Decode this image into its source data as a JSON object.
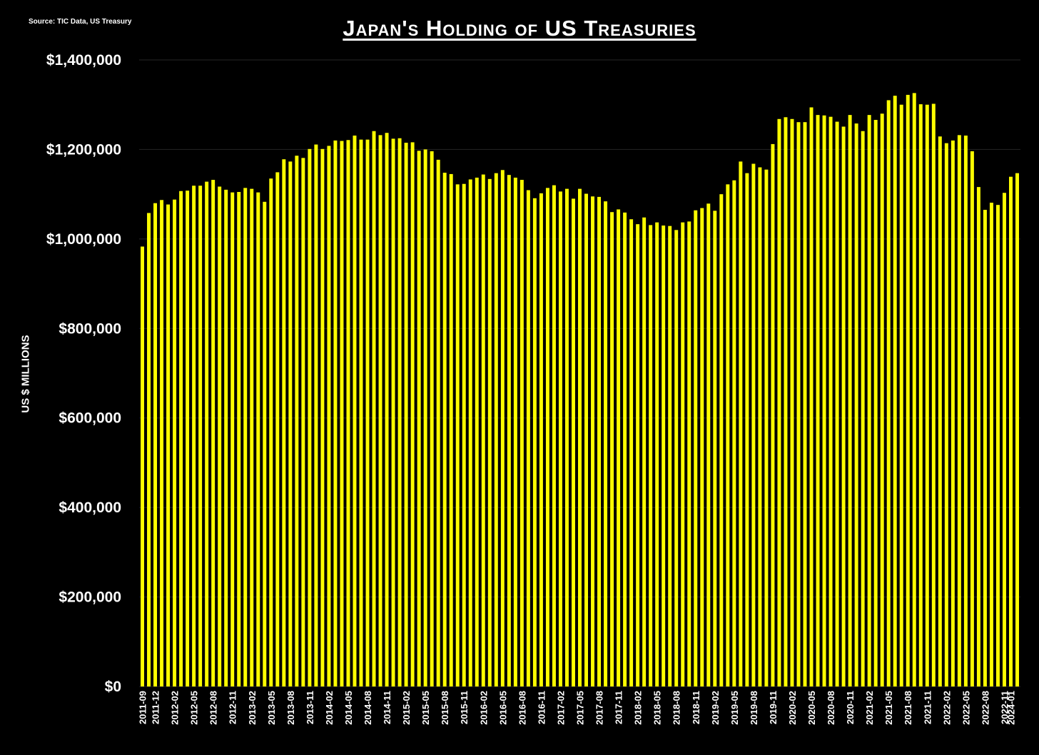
{
  "source_note": "Source: TIC Data, US Treasury",
  "chart_data": {
    "type": "bar",
    "title": "Japan's Holding of US Treasuries",
    "ylabel": "US $ MILLIONS",
    "xlabel": "",
    "ylim": [
      0,
      1400000
    ],
    "yticks": [
      0,
      200000,
      400000,
      600000,
      800000,
      1000000,
      1200000,
      1400000
    ],
    "ytick_labels": [
      "$0",
      "$200,000",
      "$400,000",
      "$600,000",
      "$800,000",
      "$1,000,000",
      "$1,200,000",
      "$1,400,000"
    ],
    "grid": "horizontal",
    "bar_color": "#FFFF00",
    "background": "#000000",
    "gridline_color": "#262626",
    "start_month": "2011-09",
    "xtick_every": 3,
    "xtick_labels": [
      "2011-09",
      "2011-12",
      "2012-02",
      "2012-05",
      "2012-08",
      "2012-11",
      "2013-02",
      "2013-05",
      "2013-08",
      "2013-11",
      "2014-02",
      "2014-05",
      "2014-08",
      "2014-11",
      "2015-02",
      "2015-05",
      "2015-08",
      "2015-11",
      "2016-02",
      "2016-05",
      "2016-08",
      "2016-11",
      "2017-02",
      "2017-05",
      "2017-08",
      "2017-11",
      "2018-02",
      "2018-05",
      "2018-08",
      "2018-11",
      "2019-02",
      "2019-05",
      "2019-08",
      "2019-11",
      "2020-02",
      "2020-05",
      "2020-08",
      "2020-11",
      "2021-02",
      "2021-05",
      "2021-08",
      "2021-11",
      "2022-02",
      "2022-05",
      "2022-08",
      "2022-11",
      "2024-01"
    ],
    "values": [
      983000,
      1058000,
      1080000,
      1087000,
      1077000,
      1088000,
      1107000,
      1108000,
      1119000,
      1119000,
      1128000,
      1132000,
      1117000,
      1110000,
      1104000,
      1105000,
      1114000,
      1112000,
      1104000,
      1083000,
      1135000,
      1149000,
      1178000,
      1173000,
      1186000,
      1181000,
      1201000,
      1211000,
      1201000,
      1208000,
      1220000,
      1219000,
      1221000,
      1231000,
      1222000,
      1222000,
      1241000,
      1232000,
      1237000,
      1224000,
      1225000,
      1215000,
      1216000,
      1197000,
      1200000,
      1196000,
      1177000,
      1148000,
      1145000,
      1122000,
      1123000,
      1133000,
      1137000,
      1144000,
      1134000,
      1147000,
      1154000,
      1143000,
      1137000,
      1132000,
      1109000,
      1091000,
      1102000,
      1114000,
      1120000,
      1106000,
      1112000,
      1090000,
      1112000,
      1101000,
      1095000,
      1094000,
      1084000,
      1060000,
      1066000,
      1059000,
      1044000,
      1033000,
      1048000,
      1031000,
      1037000,
      1030000,
      1029000,
      1020000,
      1037000,
      1039000,
      1064000,
      1069000,
      1079000,
      1063000,
      1100000,
      1122000,
      1131000,
      1173000,
      1147000,
      1168000,
      1160000,
      1155000,
      1212000,
      1268000,
      1272000,
      1268000,
      1261000,
      1261000,
      1294000,
      1277000,
      1276000,
      1273000,
      1262000,
      1251000,
      1277000,
      1258000,
      1241000,
      1277000,
      1266000,
      1280000,
      1310000,
      1320000,
      1300000,
      1322000,
      1326000,
      1301000,
      1300000,
      1302000,
      1229000,
      1214000,
      1220000,
      1232000,
      1231000,
      1196000,
      1116000,
      1065000,
      1081000,
      1076000,
      1103000,
      1139000,
      1147000
    ]
  }
}
